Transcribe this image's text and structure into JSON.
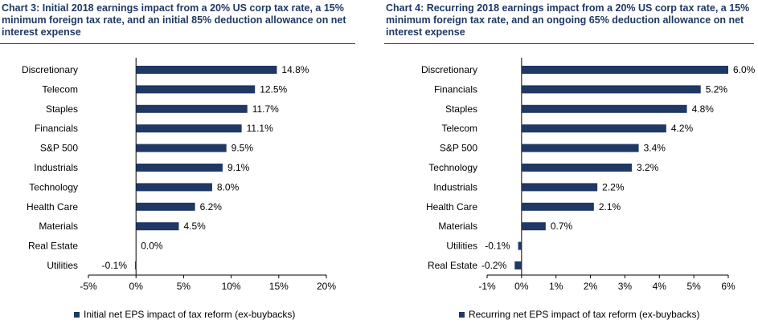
{
  "left_chart": {
    "title": "Chart 3: Initial 2018 earnings impact from a 20% US corp tax rate, a 15% minimum foreign tax rate, and an initial 85% deduction allowance on net interest expense",
    "legend": "Initial net EPS impact of tax reform (ex-buybacks)"
  },
  "right_chart": {
    "title": "Chart 4: Recurring 2018 earnings impact from a 20% US corp tax rate, a 15% minimum foreign tax rate, and an ongoing 65% deduction allowance on net interest expense",
    "legend": "Recurring net EPS impact of tax reform (ex-buybacks)"
  },
  "colors": {
    "bar": "#1f3864",
    "title": "#1f3864"
  },
  "chart_data": [
    {
      "type": "bar",
      "orientation": "horizontal",
      "title": "Chart 3: Initial 2018 earnings impact from a 20% US corp tax rate, a 15% minimum foreign tax rate, and an initial 85% deduction allowance on net interest expense",
      "categories": [
        "Discretionary",
        "Telecom",
        "Staples",
        "Financials",
        "S&P 500",
        "Industrials",
        "Technology",
        "Health Care",
        "Materials",
        "Real Estate",
        "Utilities"
      ],
      "series": [
        {
          "name": "Initial net EPS impact of tax reform (ex-buybacks)",
          "values": [
            14.8,
            12.5,
            11.7,
            11.1,
            9.5,
            9.1,
            8.0,
            6.2,
            4.5,
            0.0,
            -0.1
          ]
        }
      ],
      "value_labels": [
        "14.8%",
        "12.5%",
        "11.7%",
        "11.1%",
        "9.5%",
        "9.1%",
        "8.0%",
        "6.2%",
        "4.5%",
        "0.0%",
        "-0.1%"
      ],
      "xlim": [
        -5,
        20
      ],
      "xticks": [
        "-5%",
        "0%",
        "5%",
        "10%",
        "15%",
        "20%"
      ],
      "grid": false,
      "legend_position": "bottom"
    },
    {
      "type": "bar",
      "orientation": "horizontal",
      "title": "Chart 4: Recurring 2018 earnings impact from a 20% US corp tax rate, a 15% minimum foreign tax rate, and an ongoing 65% deduction allowance on net interest expense",
      "categories": [
        "Discretionary",
        "Financials",
        "Staples",
        "Telecom",
        "S&P 500",
        "Technology",
        "Industrials",
        "Health Care",
        "Materials",
        "Utilities",
        "Real Estate"
      ],
      "series": [
        {
          "name": "Recurring net EPS impact of tax reform (ex-buybacks)",
          "values": [
            6.0,
            5.2,
            4.8,
            4.2,
            3.4,
            3.2,
            2.2,
            2.1,
            0.7,
            -0.1,
            -0.2
          ]
        }
      ],
      "value_labels": [
        "6.0%",
        "5.2%",
        "4.8%",
        "4.2%",
        "3.4%",
        "3.2%",
        "2.2%",
        "2.1%",
        "0.7%",
        "-0.1%",
        "-0.2%"
      ],
      "xlim": [
        -1,
        6
      ],
      "xticks": [
        "-1%",
        "0%",
        "1%",
        "2%",
        "3%",
        "4%",
        "5%",
        "6%"
      ],
      "grid": false,
      "legend_position": "bottom"
    }
  ]
}
